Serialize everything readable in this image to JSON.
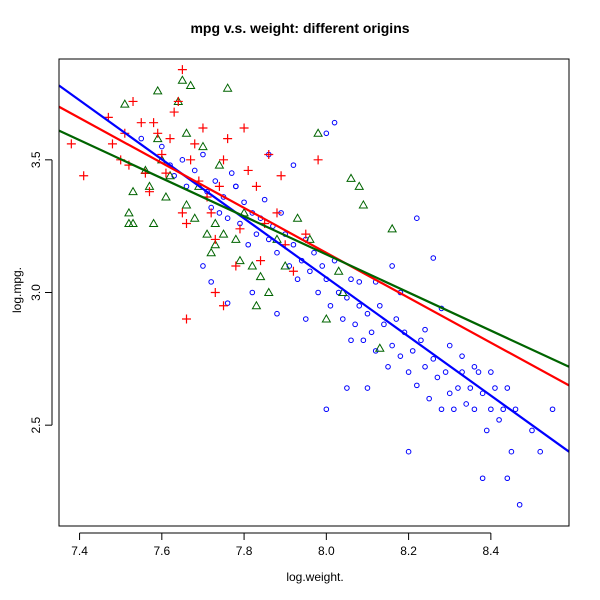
{
  "chart_data": {
    "type": "scatter",
    "title": "mpg v.s. weight: different origins",
    "xlabel": "log.weight.",
    "ylabel": "log.mpg.",
    "xlim": [
      7.35,
      8.59
    ],
    "ylim": [
      2.12,
      3.88
    ],
    "x_ticks": [
      "7.4",
      "7.6",
      "7.8",
      "8.0",
      "8.2",
      "8.4"
    ],
    "x_tick_values": [
      7.4,
      7.6,
      7.8,
      8.0,
      8.2,
      8.4
    ],
    "y_ticks": [
      "2.5",
      "3.0",
      "3.5"
    ],
    "y_tick_values": [
      2.5,
      3.0,
      3.5
    ],
    "grid": false,
    "series": [
      {
        "marker": "circle",
        "color": "#0000ff",
        "points": [
          [
            7.55,
            3.58
          ],
          [
            7.6,
            3.55
          ],
          [
            7.62,
            3.48
          ],
          [
            7.63,
            3.44
          ],
          [
            7.65,
            3.5
          ],
          [
            7.66,
            3.4
          ],
          [
            7.68,
            3.46
          ],
          [
            7.7,
            3.52
          ],
          [
            7.71,
            3.38
          ],
          [
            7.72,
            3.32
          ],
          [
            7.73,
            3.42
          ],
          [
            7.74,
            3.3
          ],
          [
            7.75,
            3.36
          ],
          [
            7.76,
            3.28
          ],
          [
            7.77,
            3.45
          ],
          [
            7.78,
            3.4
          ],
          [
            7.79,
            3.26
          ],
          [
            7.8,
            3.34
          ],
          [
            7.81,
            3.18
          ],
          [
            7.82,
            3.3
          ],
          [
            7.83,
            3.22
          ],
          [
            7.84,
            3.28
          ],
          [
            7.85,
            3.35
          ],
          [
            7.86,
            3.2
          ],
          [
            7.87,
            3.25
          ],
          [
            7.88,
            3.15
          ],
          [
            7.89,
            3.3
          ],
          [
            7.9,
            3.22
          ],
          [
            7.91,
            3.1
          ],
          [
            7.92,
            3.18
          ],
          [
            7.93,
            3.05
          ],
          [
            7.94,
            3.12
          ],
          [
            7.95,
            3.2
          ],
          [
            7.96,
            3.08
          ],
          [
            7.97,
            3.15
          ],
          [
            7.98,
            3.0
          ],
          [
            7.99,
            3.1
          ],
          [
            8.0,
            3.05
          ],
          [
            8.01,
            2.95
          ],
          [
            8.02,
            3.12
          ],
          [
            8.03,
            3.0
          ],
          [
            8.04,
            2.9
          ],
          [
            8.05,
            2.98
          ],
          [
            8.06,
            3.05
          ],
          [
            8.07,
            2.88
          ],
          [
            8.08,
            2.95
          ],
          [
            8.09,
            2.82
          ],
          [
            8.1,
            2.92
          ],
          [
            8.11,
            2.85
          ],
          [
            8.12,
            2.78
          ],
          [
            8.13,
            2.95
          ],
          [
            8.14,
            2.88
          ],
          [
            8.15,
            2.72
          ],
          [
            8.16,
            2.8
          ],
          [
            8.17,
            2.9
          ],
          [
            8.18,
            2.76
          ],
          [
            8.19,
            2.85
          ],
          [
            8.2,
            2.7
          ],
          [
            8.21,
            2.78
          ],
          [
            8.22,
            2.65
          ],
          [
            8.23,
            2.82
          ],
          [
            8.24,
            2.72
          ],
          [
            8.25,
            2.6
          ],
          [
            8.26,
            2.75
          ],
          [
            8.27,
            2.68
          ],
          [
            8.28,
            2.56
          ],
          [
            8.29,
            2.7
          ],
          [
            8.3,
            2.62
          ],
          [
            8.31,
            2.56
          ],
          [
            8.32,
            2.64
          ],
          [
            8.33,
            2.7
          ],
          [
            8.34,
            2.58
          ],
          [
            8.35,
            2.64
          ],
          [
            8.36,
            2.56
          ],
          [
            8.37,
            2.7
          ],
          [
            8.38,
            2.62
          ],
          [
            8.39,
            2.48
          ],
          [
            8.4,
            2.56
          ],
          [
            8.41,
            2.64
          ],
          [
            8.42,
            2.52
          ],
          [
            8.43,
            2.56
          ],
          [
            8.44,
            2.64
          ],
          [
            8.45,
            2.4
          ],
          [
            8.46,
            2.56
          ],
          [
            8.47,
            2.2
          ],
          [
            8.5,
            2.48
          ],
          [
            8.52,
            2.4
          ],
          [
            8.55,
            2.56
          ],
          [
            8.38,
            2.3
          ],
          [
            8.44,
            2.3
          ],
          [
            8.2,
            2.4
          ],
          [
            8.1,
            2.64
          ],
          [
            8.0,
            2.56
          ],
          [
            8.05,
            2.64
          ],
          [
            8.28,
            2.94
          ],
          [
            8.26,
            3.13
          ],
          [
            8.22,
            3.28
          ],
          [
            8.08,
            3.04
          ],
          [
            8.02,
            3.64
          ],
          [
            8.0,
            3.6
          ],
          [
            7.92,
            3.48
          ],
          [
            7.86,
            3.52
          ],
          [
            7.78,
            3.4
          ],
          [
            7.7,
            3.1
          ],
          [
            7.72,
            3.04
          ],
          [
            7.76,
            2.96
          ],
          [
            7.82,
            3.0
          ],
          [
            7.88,
            2.92
          ],
          [
            7.95,
            2.9
          ],
          [
            8.06,
            2.82
          ],
          [
            8.12,
            3.04
          ],
          [
            8.16,
            3.1
          ],
          [
            8.18,
            3.0
          ],
          [
            8.24,
            2.86
          ],
          [
            8.3,
            2.8
          ],
          [
            8.33,
            2.76
          ],
          [
            8.36,
            2.72
          ],
          [
            8.4,
            2.7
          ]
        ]
      },
      {
        "marker": "triangle",
        "color": "#006400",
        "points": [
          [
            7.51,
            3.71
          ],
          [
            7.52,
            3.3
          ],
          [
            7.52,
            3.26
          ],
          [
            7.53,
            3.38
          ],
          [
            7.56,
            3.46
          ],
          [
            7.57,
            3.4
          ],
          [
            7.58,
            3.26
          ],
          [
            7.59,
            3.58
          ],
          [
            7.59,
            3.76
          ],
          [
            7.6,
            3.5
          ],
          [
            7.62,
            3.44
          ],
          [
            7.64,
            3.72
          ],
          [
            7.65,
            3.8
          ],
          [
            7.66,
            3.6
          ],
          [
            7.66,
            3.33
          ],
          [
            7.67,
            3.78
          ],
          [
            7.68,
            3.28
          ],
          [
            7.69,
            3.4
          ],
          [
            7.7,
            3.55
          ],
          [
            7.71,
            3.22
          ],
          [
            7.72,
            3.15
          ],
          [
            7.73,
            3.26
          ],
          [
            7.74,
            3.48
          ],
          [
            7.75,
            3.22
          ],
          [
            7.76,
            3.77
          ],
          [
            7.78,
            3.2
          ],
          [
            7.79,
            3.12
          ],
          [
            7.8,
            3.3
          ],
          [
            7.82,
            3.1
          ],
          [
            7.84,
            3.06
          ],
          [
            7.86,
            3.0
          ],
          [
            7.88,
            3.2
          ],
          [
            7.9,
            3.1
          ],
          [
            7.93,
            3.28
          ],
          [
            7.96,
            3.2
          ],
          [
            7.98,
            3.6
          ],
          [
            8.0,
            2.9
          ],
          [
            8.03,
            3.08
          ],
          [
            8.04,
            3.0
          ],
          [
            8.06,
            3.43
          ],
          [
            8.08,
            3.4
          ],
          [
            8.09,
            3.33
          ],
          [
            8.13,
            2.79
          ],
          [
            8.16,
            3.24
          ],
          [
            7.53,
            3.26
          ],
          [
            7.83,
            2.95
          ],
          [
            7.73,
            3.18
          ],
          [
            7.61,
            3.36
          ]
        ]
      },
      {
        "marker": "plus",
        "color": "#ff0000",
        "points": [
          [
            7.38,
            3.56
          ],
          [
            7.41,
            3.44
          ],
          [
            7.47,
            3.66
          ],
          [
            7.48,
            3.56
          ],
          [
            7.5,
            3.5
          ],
          [
            7.51,
            3.6
          ],
          [
            7.53,
            3.72
          ],
          [
            7.55,
            3.64
          ],
          [
            7.56,
            3.45
          ],
          [
            7.58,
            3.64
          ],
          [
            7.59,
            3.6
          ],
          [
            7.6,
            3.52
          ],
          [
            7.61,
            3.45
          ],
          [
            7.62,
            3.58
          ],
          [
            7.63,
            3.68
          ],
          [
            7.64,
            3.72
          ],
          [
            7.65,
            3.84
          ],
          [
            7.65,
            3.3
          ],
          [
            7.66,
            3.26
          ],
          [
            7.67,
            3.5
          ],
          [
            7.68,
            3.56
          ],
          [
            7.69,
            3.42
          ],
          [
            7.7,
            3.62
          ],
          [
            7.71,
            3.36
          ],
          [
            7.72,
            3.3
          ],
          [
            7.73,
            3.2
          ],
          [
            7.74,
            3.4
          ],
          [
            7.75,
            3.5
          ],
          [
            7.76,
            3.58
          ],
          [
            7.78,
            3.1
          ],
          [
            7.79,
            3.24
          ],
          [
            7.8,
            3.62
          ],
          [
            7.81,
            3.46
          ],
          [
            7.83,
            3.4
          ],
          [
            7.85,
            3.26
          ],
          [
            7.86,
            3.52
          ],
          [
            7.88,
            3.3
          ],
          [
            7.9,
            3.18
          ],
          [
            7.92,
            3.08
          ],
          [
            7.95,
            3.22
          ],
          [
            7.98,
            3.5
          ],
          [
            7.66,
            2.9
          ],
          [
            7.73,
            3.0
          ],
          [
            7.75,
            2.95
          ],
          [
            7.84,
            3.12
          ],
          [
            7.89,
            3.44
          ],
          [
            7.52,
            3.48
          ],
          [
            7.57,
            3.38
          ]
        ]
      }
    ],
    "regression_lines": [
      {
        "color": "#0000ff",
        "x": [
          7.35,
          8.59
        ],
        "y": [
          3.78,
          2.4
        ]
      },
      {
        "color": "#ff0000",
        "x": [
          7.35,
          8.59
        ],
        "y": [
          3.7,
          2.65
        ]
      },
      {
        "color": "#006400",
        "x": [
          7.35,
          8.59
        ],
        "y": [
          3.61,
          2.72
        ]
      }
    ]
  }
}
